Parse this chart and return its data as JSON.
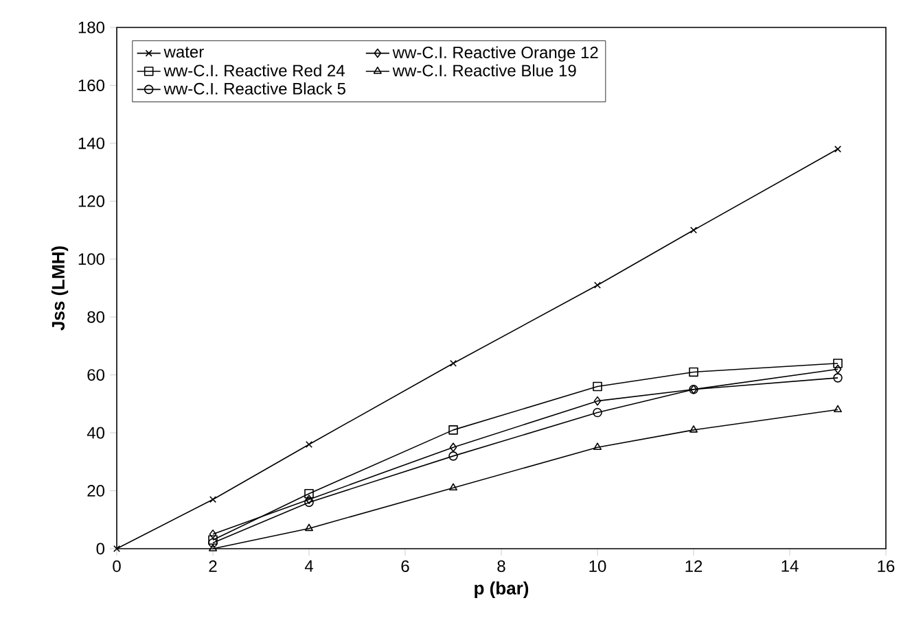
{
  "chart_data": {
    "type": "line",
    "xlabel": "p (bar)",
    "ylabel": "Jss (LMH)",
    "xlim": [
      0,
      16
    ],
    "ylim": [
      0,
      180
    ],
    "xticks": [
      0,
      2,
      4,
      6,
      8,
      10,
      12,
      14,
      16
    ],
    "yticks": [
      0,
      20,
      40,
      60,
      80,
      100,
      120,
      140,
      160,
      180
    ],
    "grid": false,
    "legend": "top left",
    "line_style": "solid",
    "series": [
      {
        "name": "water",
        "color": "#000000",
        "marker": "cross",
        "x": [
          0,
          2,
          4,
          7,
          10,
          12,
          15
        ],
        "values": [
          0,
          17,
          36,
          64,
          91,
          110,
          138
        ]
      },
      {
        "name": "ww-C.I. Reactive Orange 12",
        "color": "#000000",
        "marker": "diamond",
        "x": [
          2,
          4,
          7,
          10,
          12,
          15
        ],
        "values": [
          5,
          17,
          35,
          51,
          55,
          62
        ]
      },
      {
        "name": "ww-C.I. Reactive Red 24",
        "color": "#000000",
        "marker": "square",
        "x": [
          2,
          4,
          7,
          10,
          12,
          15
        ],
        "values": [
          3,
          19,
          41,
          56,
          61,
          64
        ]
      },
      {
        "name": "ww-C.I. Reactive Blue 19",
        "color": "#000000",
        "marker": "triangle",
        "x": [
          2,
          4,
          7,
          10,
          12,
          15
        ],
        "values": [
          0,
          7,
          21,
          35,
          41,
          48
        ]
      },
      {
        "name": "ww-C.I. Reactive Black 5",
        "color": "#000000",
        "marker": "circle",
        "x": [
          2,
          4,
          7,
          10,
          12,
          15
        ],
        "values": [
          2,
          16,
          32,
          47,
          55,
          59
        ]
      }
    ]
  }
}
